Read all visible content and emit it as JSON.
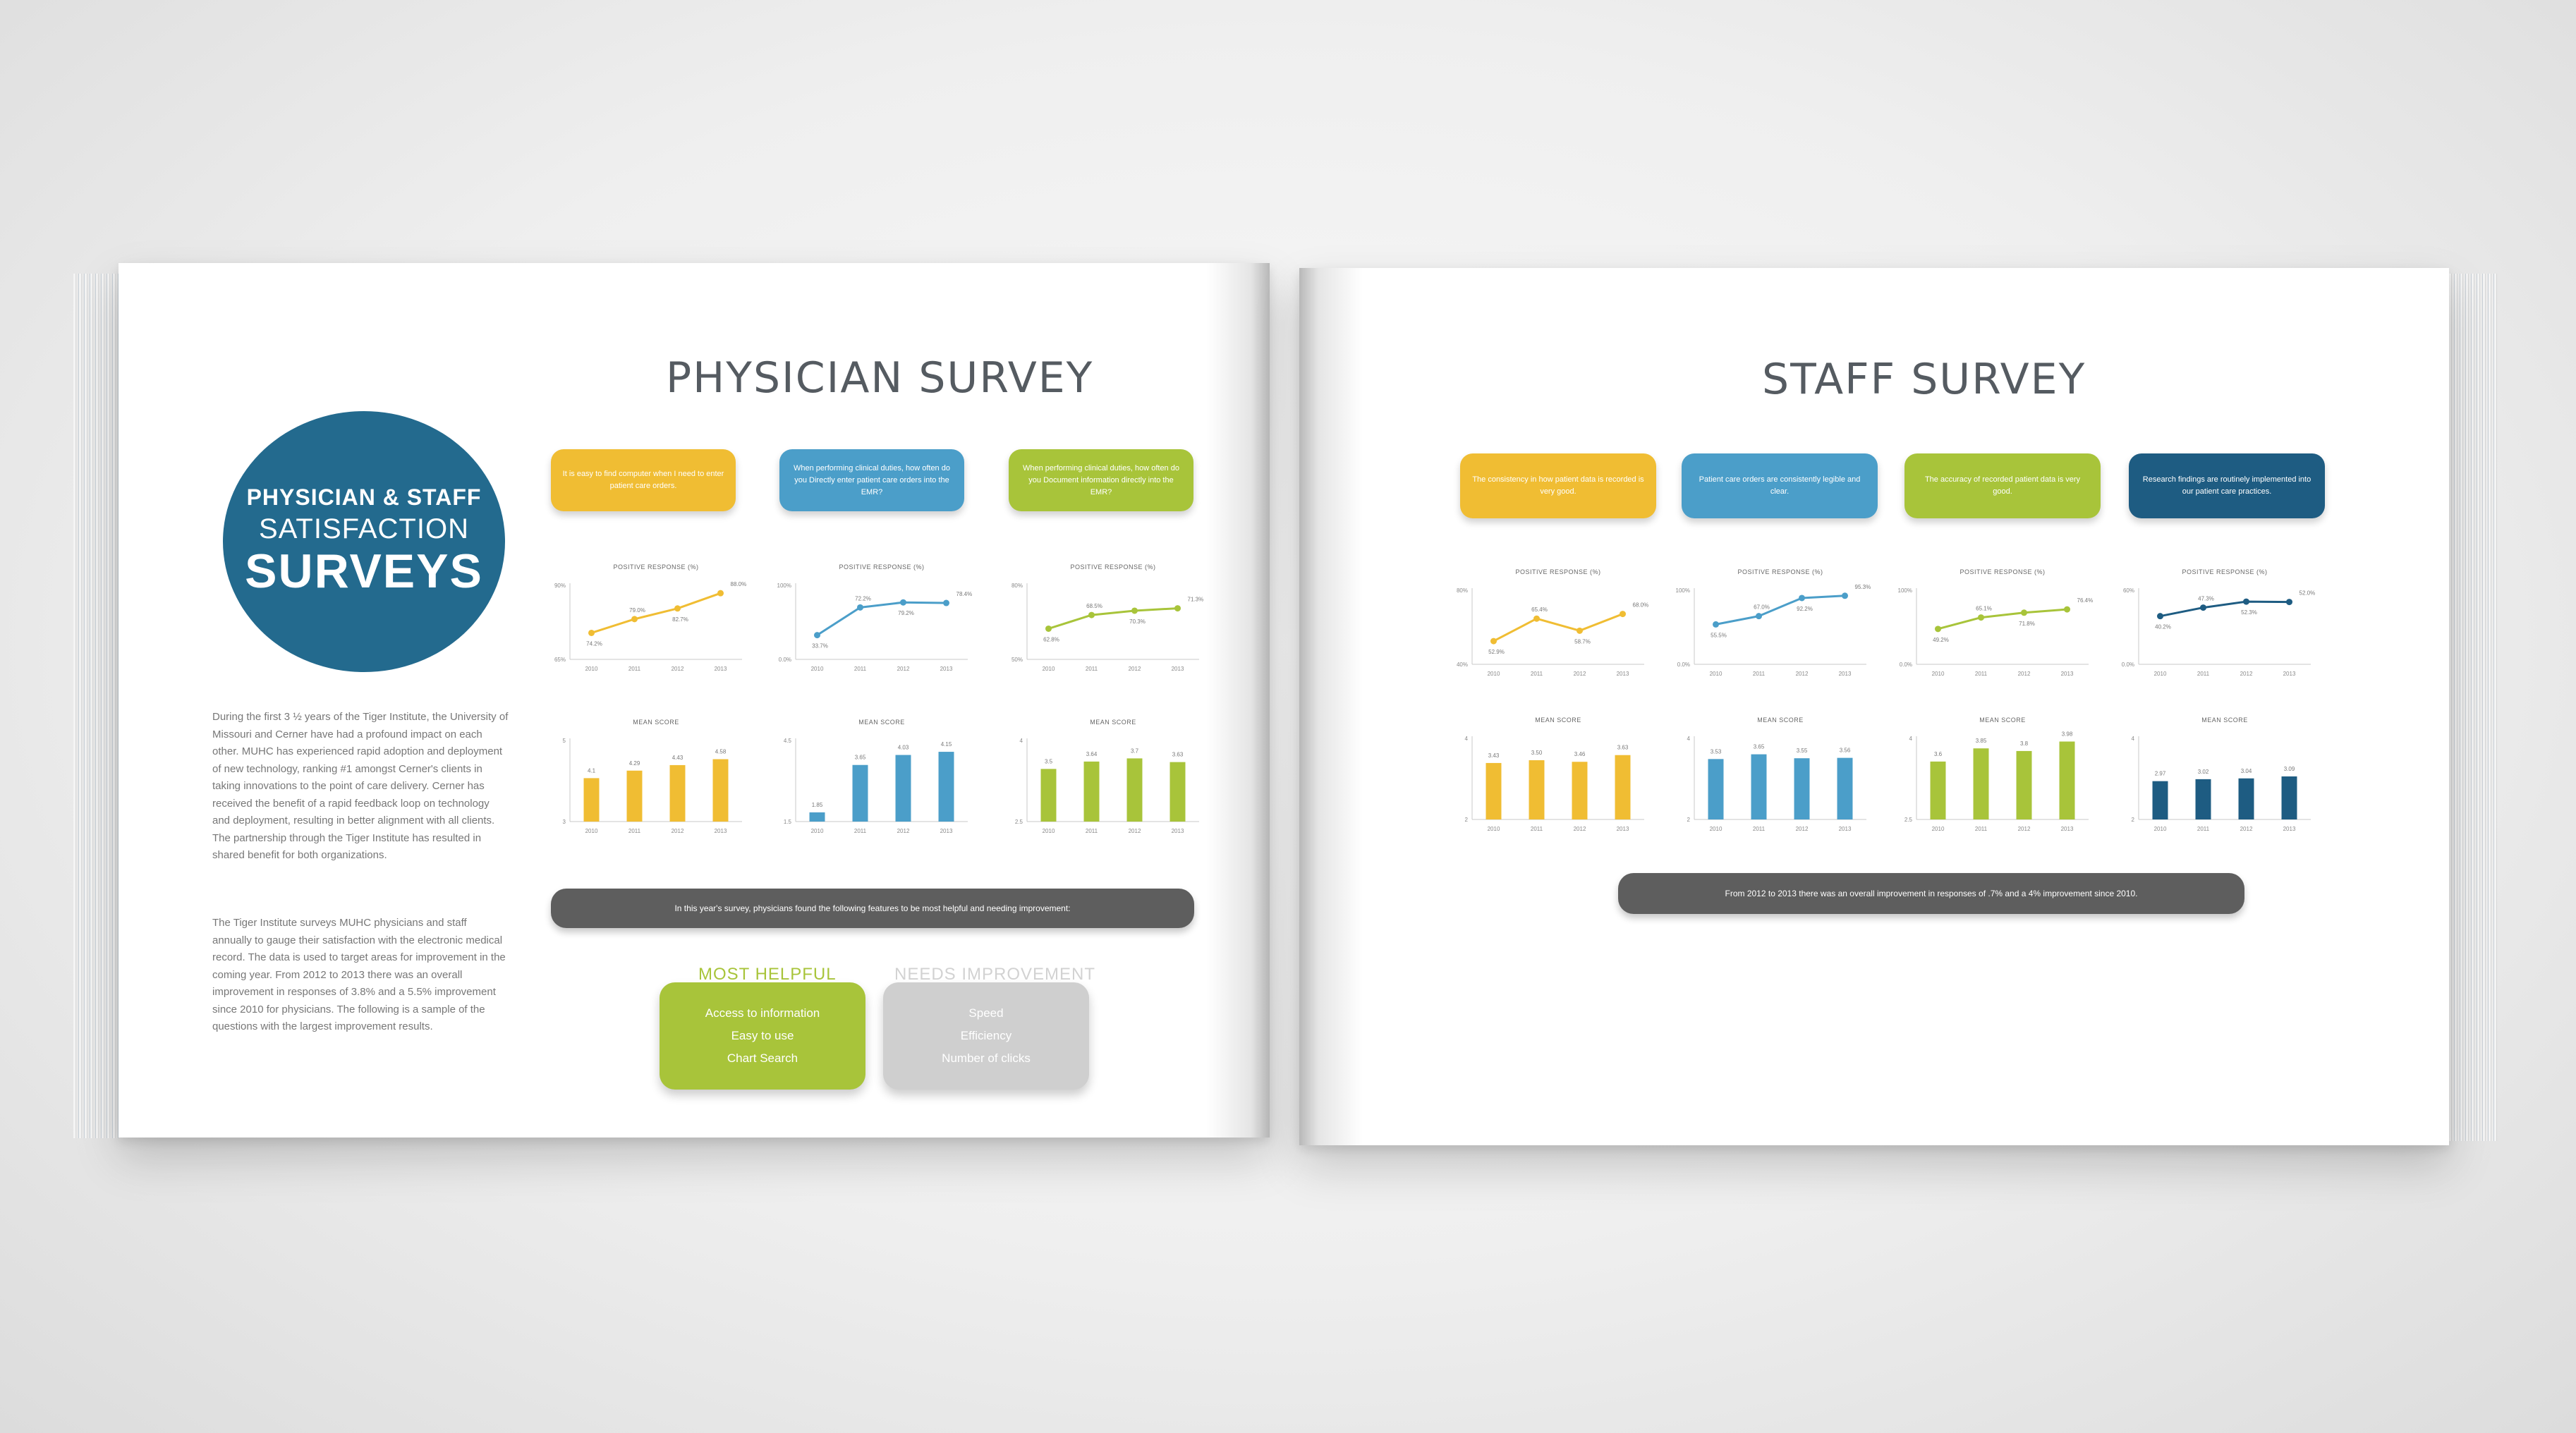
{
  "colors": {
    "yellow": "#f0bd33",
    "blue": "#4b9ec9",
    "green": "#a8c43a",
    "navy": "#1e5c82",
    "gray_bar": "#5e5e5e",
    "light_gray": "#cfcfcf",
    "title": "#555b61"
  },
  "left_page": {
    "title": "PHYSICIAN SURVEY",
    "hero": {
      "line1": "PHYSICIAN & STAFF",
      "line2": "SATISFACTION",
      "line3": "SURVEYS"
    },
    "paragraphs": [
      "During the first 3 ½ years of the Tiger Institute, the University of Missouri and Cerner have had a profound impact on each other. MUHC has experienced rapid adoption and deployment of new technology, ranking #1 amongst Cerner's clients in taking innovations to the point of care delivery. Cerner has received the benefit of a rapid feedback loop on technology and deployment, resulting in better alignment with all clients. The partnership through the Tiger Institute has resulted in shared benefit for both organizations.",
      "The Tiger Institute surveys MUHC physicians and staff annually to gauge their satisfaction with the electronic medical record. The data is used to target areas for improvement in the coming year. From 2012 to 2013 there was an overall improvement in responses of 3.8% and a 5.5% improvement since 2010 for physicians. The following is a sample of the questions with the largest improvement results."
    ],
    "questions": [
      {
        "text": "It is easy to find computer when I need to enter patient care orders.",
        "color": "yellow"
      },
      {
        "text": "When performing clinical duties, how often do you Directly enter patient care orders into the EMR?",
        "color": "blue"
      },
      {
        "text": "When performing clinical duties, how often do you Document information directly into the EMR?",
        "color": "green"
      }
    ],
    "summary": "In this year's survey, physicians found the following features to be most helpful and needing improvement:",
    "most_helpful": {
      "label": "MOST HELPFUL",
      "items": [
        "Access to information",
        "Easy to use",
        "Chart Search"
      ]
    },
    "needs_improvement": {
      "label": "NEEDS IMPROVEMENT",
      "items": [
        "Speed",
        "Efficiency",
        "Number of clicks"
      ]
    }
  },
  "right_page": {
    "title": "STAFF SURVEY",
    "questions": [
      {
        "text": "The consistency in how patient data is recorded is very good.",
        "color": "yellow"
      },
      {
        "text": "Patient care orders are consistently legible and clear.",
        "color": "blue"
      },
      {
        "text": "The accuracy of recorded patient data is very good.",
        "color": "green"
      },
      {
        "text": "Research findings are routinely implemented into our patient care practices.",
        "color": "navy"
      }
    ],
    "summary": "From 2012 to 2013 there was an overall improvement in responses of .7% and a 4% improvement since 2010."
  },
  "chart_data": [
    {
      "page": "left",
      "type": "line",
      "title": "POSITIVE RESPONSE (%)",
      "color": "yellow",
      "x": [
        "2010",
        "2011",
        "2012",
        "2013"
      ],
      "values": [
        74.2,
        79.0,
        82.7,
        88.0
      ],
      "data_labels": [
        "74.2%",
        "79.0%",
        "82.7%",
        "88.0%"
      ],
      "ylim": [
        65,
        90
      ],
      "ytick_labels": [
        "90%",
        "65%"
      ]
    },
    {
      "page": "left",
      "type": "line",
      "title": "POSITIVE RESPONSE (%)",
      "color": "blue",
      "x": [
        "2010",
        "2011",
        "2012",
        "2013"
      ],
      "values": [
        33.7,
        72.2,
        79.2,
        78.4
      ],
      "data_labels": [
        "33.7%",
        "72.2%",
        "79.2%",
        "78.4%"
      ],
      "ylim": [
        0,
        100
      ],
      "ytick_labels": [
        "100%",
        "0.0%"
      ]
    },
    {
      "page": "left",
      "type": "line",
      "title": "POSITIVE RESPONSE (%)",
      "color": "green",
      "x": [
        "2010",
        "2011",
        "2012",
        "2013"
      ],
      "values": [
        62.8,
        68.5,
        70.3,
        71.3
      ],
      "data_labels": [
        "62.8%",
        "68.5%",
        "70.3%",
        "71.3%"
      ],
      "ylim": [
        50,
        80
      ],
      "ytick_labels": [
        "80%",
        "50%"
      ]
    },
    {
      "page": "left",
      "type": "bar",
      "title": "MEAN SCORE",
      "color": "yellow",
      "x": [
        "2010",
        "2011",
        "2012",
        "2013"
      ],
      "values": [
        4.1,
        4.29,
        4.43,
        4.58
      ],
      "data_labels": [
        "4.1",
        "4.29",
        "4.43",
        "4.58"
      ],
      "ylim": [
        3,
        5
      ],
      "ytick_labels": [
        "5",
        "3"
      ]
    },
    {
      "page": "left",
      "type": "bar",
      "title": "MEAN SCORE",
      "color": "blue",
      "x": [
        "2010",
        "2011",
        "2012",
        "2013"
      ],
      "values": [
        1.85,
        3.65,
        4.03,
        4.15
      ],
      "data_labels": [
        "1.85",
        "3.65",
        "4.03",
        "4.15"
      ],
      "ylim": [
        1.5,
        4.5
      ],
      "ytick_labels": [
        "4.5",
        "1.5"
      ]
    },
    {
      "page": "left",
      "type": "bar",
      "title": "MEAN SCORE",
      "color": "green",
      "x": [
        "2010",
        "2011",
        "2012",
        "2013"
      ],
      "values": [
        3.5,
        3.64,
        3.7,
        3.63
      ],
      "data_labels": [
        "3.5",
        "3.64",
        "3.7",
        "3.63"
      ],
      "ylim": [
        2.5,
        4
      ],
      "ytick_labels": [
        "4",
        "2.5"
      ]
    },
    {
      "page": "right",
      "type": "line",
      "title": "POSITIVE RESPONSE (%)",
      "color": "yellow",
      "x": [
        "2010",
        "2011",
        "2012",
        "2013"
      ],
      "values": [
        52.9,
        65.4,
        58.7,
        68.0
      ],
      "data_labels": [
        "52.9%",
        "65.4%",
        "58.7%",
        "68.0%"
      ],
      "ylim": [
        40,
        80
      ],
      "ytick_labels": [
        "80%",
        "40%"
      ]
    },
    {
      "page": "right",
      "type": "line",
      "title": "POSITIVE RESPONSE (%)",
      "color": "blue",
      "x": [
        "2010",
        "2011",
        "2012",
        "2013"
      ],
      "values": [
        55.5,
        67.0,
        92.2,
        95.3
      ],
      "data_labels": [
        "55.5%",
        "67.0%",
        "92.2%",
        "95.3%"
      ],
      "ylim": [
        0,
        100
      ],
      "ytick_labels": [
        "100%",
        "0.0%"
      ]
    },
    {
      "page": "right",
      "type": "line",
      "title": "POSITIVE RESPONSE (%)",
      "color": "green",
      "x": [
        "2010",
        "2011",
        "2012",
        "2013"
      ],
      "values": [
        49.2,
        65.1,
        71.8,
        76.4
      ],
      "data_labels": [
        "49.2%",
        "65.1%",
        "71.8%",
        "76.4%"
      ],
      "ylim": [
        0,
        100
      ],
      "ytick_labels": [
        "100%",
        "0.0%"
      ]
    },
    {
      "page": "right",
      "type": "line",
      "title": "POSITIVE RESPONSE (%)",
      "color": "navy",
      "x": [
        "2010",
        "2011",
        "2012",
        "2013"
      ],
      "values": [
        40.2,
        47.3,
        52.3,
        52.0
      ],
      "data_labels": [
        "40.2%",
        "47.3%",
        "52.3%",
        "52.0%"
      ],
      "ylim": [
        0,
        60
      ],
      "ytick_labels": [
        "60%",
        "0.0%"
      ]
    },
    {
      "page": "right",
      "type": "bar",
      "title": "MEAN SCORE",
      "color": "yellow",
      "x": [
        "2010",
        "2011",
        "2012",
        "2013"
      ],
      "values": [
        3.43,
        3.5,
        3.46,
        3.63
      ],
      "data_labels": [
        "3.43",
        "3.50",
        "3.46",
        "3.63"
      ],
      "ylim": [
        2,
        4
      ],
      "ytick_labels": [
        "4",
        "2"
      ]
    },
    {
      "page": "right",
      "type": "bar",
      "title": "MEAN SCORE",
      "color": "blue",
      "x": [
        "2010",
        "2011",
        "2012",
        "2013"
      ],
      "values": [
        3.53,
        3.65,
        3.55,
        3.56
      ],
      "data_labels": [
        "3.53",
        "3.65",
        "3.55",
        "3.56"
      ],
      "ylim": [
        2,
        4
      ],
      "ytick_labels": [
        "4",
        "2"
      ]
    },
    {
      "page": "right",
      "type": "bar",
      "title": "MEAN SCORE",
      "color": "green",
      "x": [
        "2010",
        "2011",
        "2012",
        "2013"
      ],
      "values": [
        3.6,
        3.85,
        3.8,
        3.98
      ],
      "data_labels": [
        "3.6",
        "3.85",
        "3.8",
        "3.98"
      ],
      "ylim": [
        2.5,
        4
      ],
      "ytick_labels": [
        "4",
        "2.5"
      ]
    },
    {
      "page": "right",
      "type": "bar",
      "title": "MEAN SCORE",
      "color": "navy",
      "x": [
        "2010",
        "2011",
        "2012",
        "2013"
      ],
      "values": [
        2.97,
        3.02,
        3.04,
        3.09
      ],
      "data_labels": [
        "2.97",
        "3.02",
        "3.04",
        "3.09"
      ],
      "ylim": [
        2,
        4
      ],
      "ytick_labels": [
        "4",
        "2"
      ]
    }
  ]
}
